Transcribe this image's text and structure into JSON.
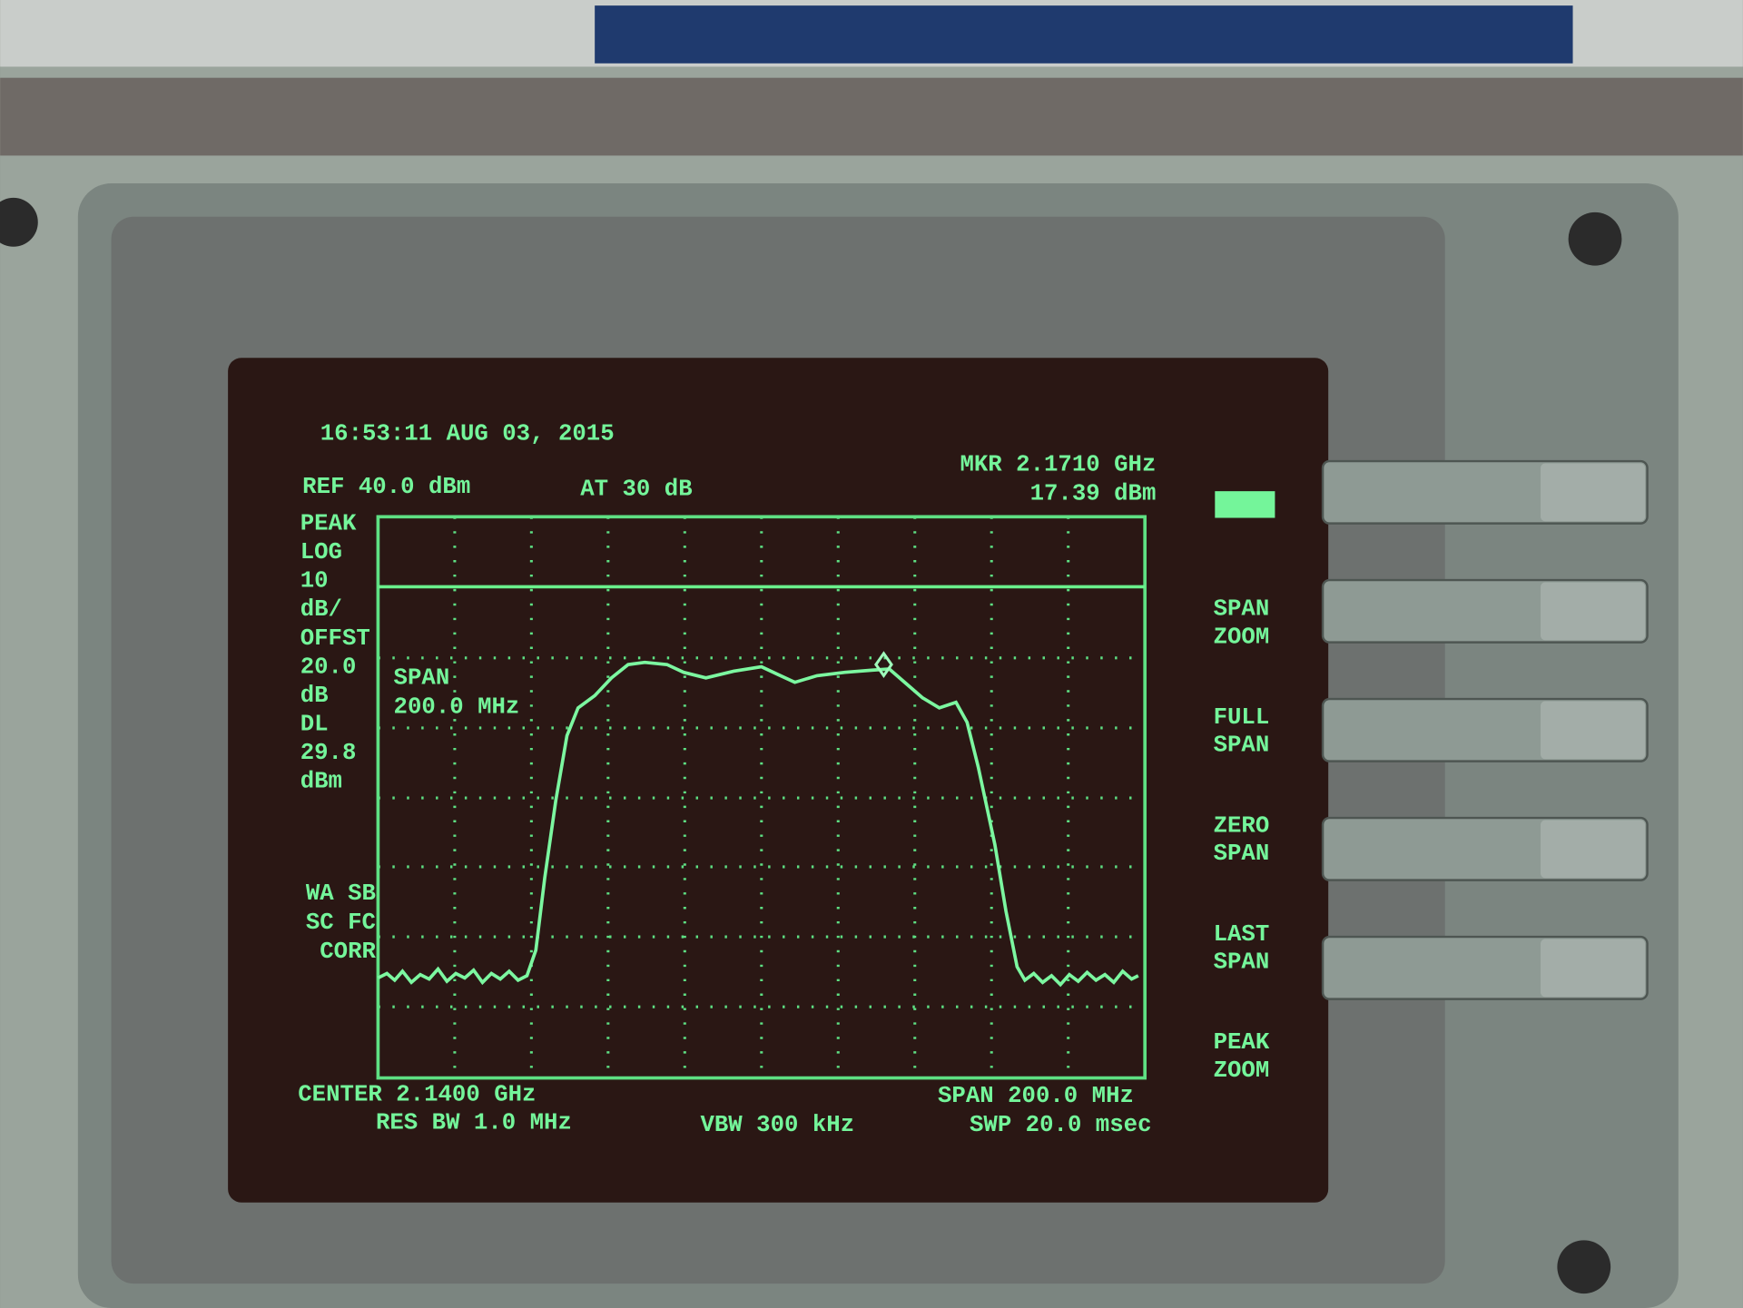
{
  "header": {
    "timestamp": "16:53:11 AUG 03, 2015",
    "ref_level": "REF 40.0 dBm",
    "attenuation": "AT 30 dB",
    "marker": {
      "frequency": "MKR 2.1710 GHz",
      "amplitude": "17.39 dBm"
    }
  },
  "left_annotations": [
    "PEAK",
    "LOG",
    "10",
    "dB/",
    "OFFST",
    "20.0",
    "dB",
    "DL",
    "29.8",
    "dBm"
  ],
  "status": [
    "WA SB",
    "SC FC",
    "CORR"
  ],
  "graph_label": [
    "SPAN",
    "200.0 MHz"
  ],
  "footer": {
    "center": "CENTER 2.1400 GHz",
    "res_bw": "RES BW 1.0 MHz",
    "vbw": "VBW 300 kHz",
    "span": "SPAN 200.0 MHz",
    "sweep": "SWP 20.0 msec"
  },
  "softkeys": [
    [
      "SPAN",
      "ZOOM"
    ],
    [
      "FULL",
      "SPAN"
    ],
    [
      "ZERO",
      "SPAN"
    ],
    [
      "LAST",
      "SPAN"
    ],
    [
      "PEAK",
      "ZOOM"
    ]
  ]
}
